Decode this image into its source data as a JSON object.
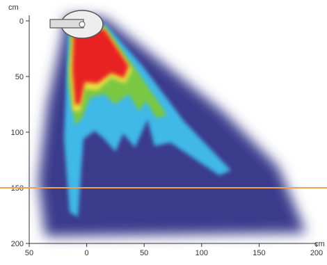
{
  "chart_data": {
    "type": "contour",
    "x_label": "cm",
    "y_label": "cm",
    "xlim": [
      -50,
      200
    ],
    "ylim": [
      0,
      200
    ],
    "y_inverted": true,
    "xticks": [
      {
        "value": -50,
        "label": "50"
      },
      0,
      50,
      100,
      150,
      200
    ],
    "yticks": [
      0,
      50,
      100,
      150,
      200
    ],
    "reference_line": {
      "y": 150,
      "color": "#f0a050"
    }
  }
}
